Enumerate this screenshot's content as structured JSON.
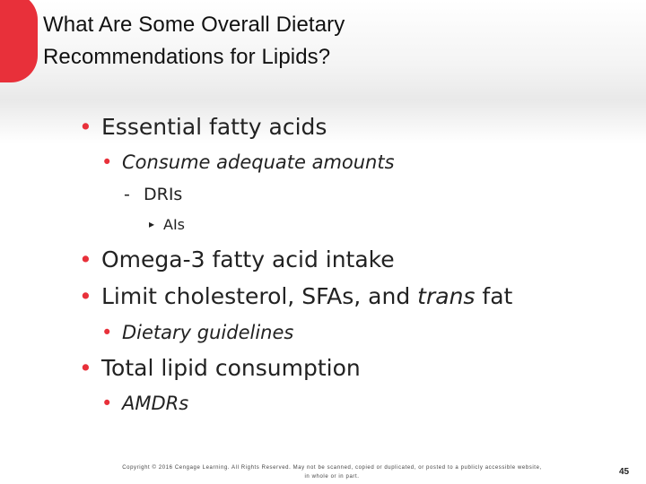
{
  "slide": {
    "accent_color": "#e8303a",
    "title_line1": "What Are Some Overall Dietary",
    "title_line2": "Recommendations for Lipids?",
    "bullets": {
      "b1": {
        "marker": "•",
        "text": "Essential fatty acids"
      },
      "b1_1": {
        "marker": "•",
        "text": "Consume adequate amounts"
      },
      "b1_1_1": {
        "marker": "-",
        "text": "DRIs"
      },
      "b1_1_1_1": {
        "marker": "▸",
        "text": "AIs"
      },
      "b2": {
        "marker": "•",
        "text": "Omega-3 fatty acid intake"
      },
      "b3": {
        "marker": "•",
        "text_before": "Limit cholesterol, SFAs, and ",
        "text_emphasis": "trans",
        "text_after": " fat"
      },
      "b3_1": {
        "marker": "•",
        "text": "Dietary guidelines"
      },
      "b4": {
        "marker": "•",
        "text": "Total lipid consumption"
      },
      "b4_1": {
        "marker": "•",
        "text": "AMDRs"
      }
    },
    "footer": {
      "copyright_line1": "Copyright © 2016 Cengage Learning. All Rights Reserved. May not be scanned, copied or duplicated, or posted to a publicly accessible website,",
      "copyright_line2": "in whole or in part."
    },
    "page_number": "45"
  }
}
